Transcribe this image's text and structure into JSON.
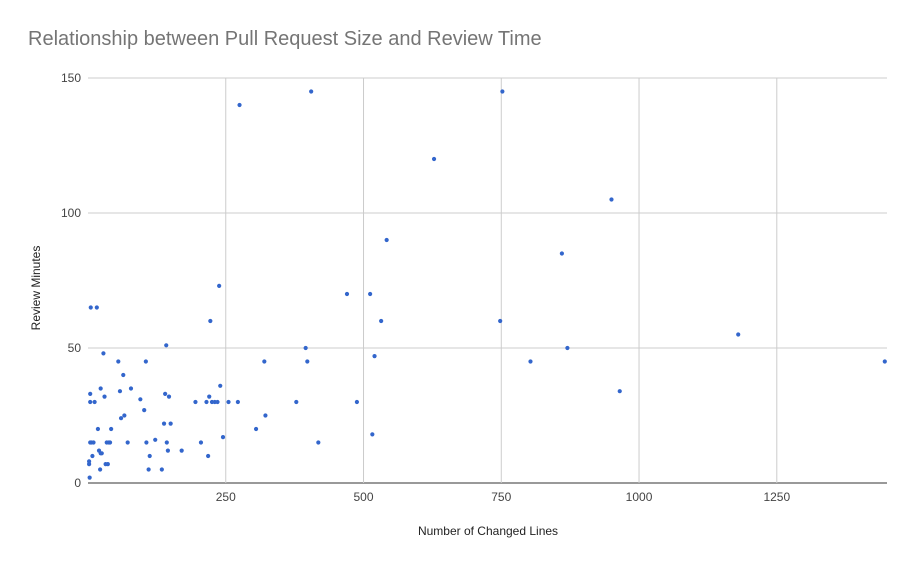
{
  "chart_data": {
    "type": "scatter",
    "title": "Relationship between Pull Request Size and Review Time",
    "xlabel": "Number of Changed Lines",
    "ylabel": "Review Minutes",
    "xlim": [
      0,
      1450
    ],
    "ylim": [
      0,
      150
    ],
    "xticks": [
      250,
      500,
      750,
      1000,
      1250
    ],
    "yticks": [
      0,
      50,
      100,
      150
    ],
    "grid": true,
    "legend": "none",
    "color": "#3366cc",
    "points": [
      {
        "x": 2,
        "y": 7
      },
      {
        "x": 2,
        "y": 8
      },
      {
        "x": 3,
        "y": 2
      },
      {
        "x": 4,
        "y": 15
      },
      {
        "x": 4,
        "y": 30
      },
      {
        "x": 4,
        "y": 33
      },
      {
        "x": 5,
        "y": 65
      },
      {
        "x": 6,
        "y": 15
      },
      {
        "x": 8,
        "y": 10
      },
      {
        "x": 10,
        "y": 15
      },
      {
        "x": 12,
        "y": 30
      },
      {
        "x": 16,
        "y": 65
      },
      {
        "x": 18,
        "y": 20
      },
      {
        "x": 20,
        "y": 12
      },
      {
        "x": 22,
        "y": 5
      },
      {
        "x": 23,
        "y": 11
      },
      {
        "x": 23,
        "y": 35
      },
      {
        "x": 25,
        "y": 11
      },
      {
        "x": 28,
        "y": 48
      },
      {
        "x": 30,
        "y": 32
      },
      {
        "x": 32,
        "y": 7
      },
      {
        "x": 34,
        "y": 15
      },
      {
        "x": 36,
        "y": 7
      },
      {
        "x": 38,
        "y": 15
      },
      {
        "x": 40,
        "y": 15
      },
      {
        "x": 42,
        "y": 20
      },
      {
        "x": 55,
        "y": 45
      },
      {
        "x": 58,
        "y": 34
      },
      {
        "x": 60,
        "y": 24
      },
      {
        "x": 64,
        "y": 40
      },
      {
        "x": 66,
        "y": 25
      },
      {
        "x": 72,
        "y": 15
      },
      {
        "x": 78,
        "y": 35
      },
      {
        "x": 95,
        "y": 31
      },
      {
        "x": 102,
        "y": 27
      },
      {
        "x": 105,
        "y": 45
      },
      {
        "x": 106,
        "y": 15
      },
      {
        "x": 110,
        "y": 5
      },
      {
        "x": 112,
        "y": 10
      },
      {
        "x": 122,
        "y": 16
      },
      {
        "x": 134,
        "y": 5
      },
      {
        "x": 138,
        "y": 22
      },
      {
        "x": 140,
        "y": 33
      },
      {
        "x": 142,
        "y": 51
      },
      {
        "x": 143,
        "y": 15
      },
      {
        "x": 145,
        "y": 12
      },
      {
        "x": 147,
        "y": 32
      },
      {
        "x": 150,
        "y": 22
      },
      {
        "x": 170,
        "y": 12
      },
      {
        "x": 195,
        "y": 30
      },
      {
        "x": 205,
        "y": 15
      },
      {
        "x": 215,
        "y": 30
      },
      {
        "x": 218,
        "y": 10
      },
      {
        "x": 220,
        "y": 32
      },
      {
        "x": 222,
        "y": 60
      },
      {
        "x": 225,
        "y": 30
      },
      {
        "x": 230,
        "y": 30
      },
      {
        "x": 235,
        "y": 30
      },
      {
        "x": 238,
        "y": 73
      },
      {
        "x": 240,
        "y": 36
      },
      {
        "x": 245,
        "y": 17
      },
      {
        "x": 255,
        "y": 30
      },
      {
        "x": 272,
        "y": 30
      },
      {
        "x": 275,
        "y": 140
      },
      {
        "x": 305,
        "y": 20
      },
      {
        "x": 320,
        "y": 45
      },
      {
        "x": 322,
        "y": 25
      },
      {
        "x": 378,
        "y": 30
      },
      {
        "x": 395,
        "y": 50
      },
      {
        "x": 398,
        "y": 45
      },
      {
        "x": 405,
        "y": 145
      },
      {
        "x": 418,
        "y": 15
      },
      {
        "x": 470,
        "y": 70
      },
      {
        "x": 488,
        "y": 30
      },
      {
        "x": 512,
        "y": 70
      },
      {
        "x": 516,
        "y": 18
      },
      {
        "x": 520,
        "y": 47
      },
      {
        "x": 532,
        "y": 60
      },
      {
        "x": 542,
        "y": 90
      },
      {
        "x": 628,
        "y": 120
      },
      {
        "x": 748,
        "y": 60
      },
      {
        "x": 752,
        "y": 145
      },
      {
        "x": 803,
        "y": 45
      },
      {
        "x": 860,
        "y": 85
      },
      {
        "x": 870,
        "y": 50
      },
      {
        "x": 950,
        "y": 105
      },
      {
        "x": 965,
        "y": 34
      },
      {
        "x": 1180,
        "y": 55
      },
      {
        "x": 1446,
        "y": 45
      }
    ]
  }
}
